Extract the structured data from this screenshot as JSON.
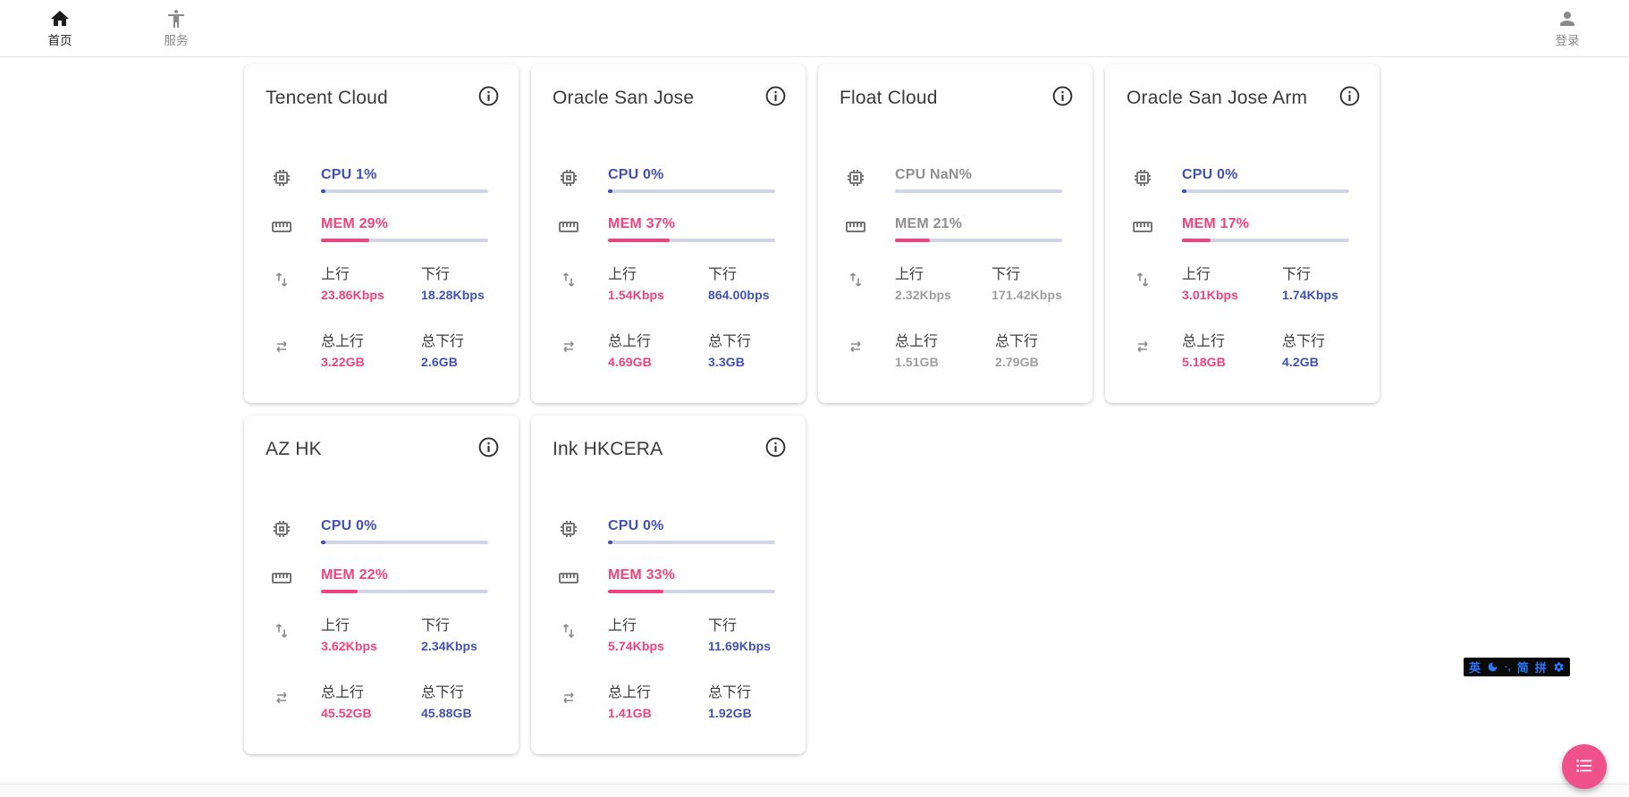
{
  "nav": {
    "home": {
      "label": "首页"
    },
    "services": {
      "label": "服务"
    },
    "login": {
      "label": "登录"
    }
  },
  "labels": {
    "up": "上行",
    "down": "下行",
    "total_up": "总上行",
    "total_down": "总下行"
  },
  "servers": [
    {
      "name": "Tencent Cloud",
      "cpu": "CPU 1%",
      "cpu_pct": 1,
      "mem": "MEM 29%",
      "mem_pct": 29,
      "up": "23.86Kbps",
      "down": "18.28Kbps",
      "total_up": "3.22GB",
      "total_down": "2.6GB",
      "offline": false
    },
    {
      "name": "Oracle San Jose",
      "cpu": "CPU 0%",
      "cpu_pct": 0,
      "mem": "MEM 37%",
      "mem_pct": 37,
      "up": "1.54Kbps",
      "down": "864.00bps",
      "total_up": "4.69GB",
      "total_down": "3.3GB",
      "offline": false
    },
    {
      "name": "Float Cloud",
      "cpu": "CPU NaN%",
      "cpu_pct": null,
      "mem": "MEM 21%",
      "mem_pct": 21,
      "up": "2.32Kbps",
      "down": "171.42Kbps",
      "total_up": "1.51GB",
      "total_down": "2.79GB",
      "offline": true
    },
    {
      "name": "Oracle San Jose Arm",
      "cpu": "CPU 0%",
      "cpu_pct": 0,
      "mem": "MEM 17%",
      "mem_pct": 17,
      "up": "3.01Kbps",
      "down": "1.74Kbps",
      "total_up": "5.18GB",
      "total_down": "4.2GB",
      "offline": false
    },
    {
      "name": "AZ HK",
      "cpu": "CPU 0%",
      "cpu_pct": 0,
      "mem": "MEM 22%",
      "mem_pct": 22,
      "up": "3.62Kbps",
      "down": "2.34Kbps",
      "total_up": "45.52GB",
      "total_down": "45.88GB",
      "offline": false
    },
    {
      "name": "Ink HKCERA",
      "cpu": "CPU 0%",
      "cpu_pct": 0,
      "mem": "MEM 33%",
      "mem_pct": 33,
      "up": "5.74Kbps",
      "down": "11.69Kbps",
      "total_up": "1.41GB",
      "total_down": "1.92GB",
      "offline": false
    }
  ],
  "ime_bar": {
    "lang": "英",
    "punct": "·,",
    "simplified": "简",
    "pinyin": "拼"
  },
  "colors": {
    "accent_indigo": "#4051B5",
    "accent_pink": "#F0437E",
    "track": "#D0D5EC",
    "offline_gray": "#9E9E9E",
    "fab_pink": "#F0518A",
    "ime_blue": "#2979FF"
  }
}
